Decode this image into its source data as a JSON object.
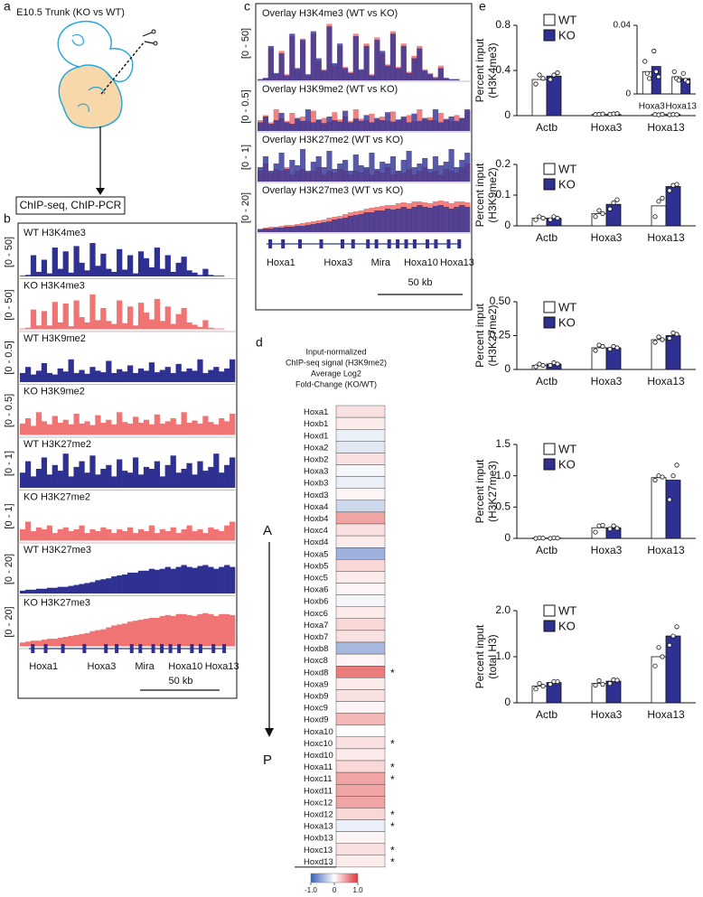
{
  "panel_labels": [
    "a",
    "b",
    "c",
    "d",
    "e"
  ],
  "panel_a": {
    "title": "E10.5 Trunk (KO vs WT)",
    "result": "ChIP-seq, ChIP-PCR"
  },
  "tracks": {
    "series": [
      {
        "name": "WT H3K4me3",
        "range_label": "[0 - 50]",
        "ylim": [
          0,
          50
        ],
        "color": "#2e3192",
        "values": [
          1,
          2,
          28,
          6,
          22,
          4,
          38,
          10,
          33,
          5,
          40,
          18,
          8,
          44,
          14,
          30,
          10,
          6,
          36,
          9,
          28,
          4,
          33,
          24,
          12,
          38,
          10,
          28,
          6,
          18,
          26,
          8,
          5,
          2,
          10,
          2,
          1,
          1,
          0,
          0
        ]
      },
      {
        "name": "KO H3K4me3",
        "range_label": "[0 - 50]",
        "ylim": [
          0,
          50
        ],
        "color": "#f07474",
        "values": [
          1,
          2,
          26,
          5,
          24,
          5,
          36,
          9,
          34,
          4,
          38,
          16,
          9,
          46,
          12,
          28,
          11,
          7,
          38,
          8,
          30,
          5,
          35,
          22,
          13,
          40,
          11,
          30,
          7,
          20,
          28,
          9,
          6,
          3,
          12,
          2,
          1,
          1,
          0,
          0
        ]
      },
      {
        "name": "WT H3K9me2",
        "range_label": "[0 - 0.5]",
        "ylim": [
          0,
          0.5
        ],
        "color": "#2e3192",
        "values": [
          0.12,
          0.2,
          0.1,
          0.15,
          0.25,
          0.12,
          0.1,
          0.18,
          0.14,
          0.3,
          0.12,
          0.16,
          0.11,
          0.2,
          0.15,
          0.13,
          0.28,
          0.12,
          0.17,
          0.14,
          0.22,
          0.12,
          0.18,
          0.15,
          0.26,
          0.13,
          0.16,
          0.2,
          0.12,
          0.24,
          0.14,
          0.18,
          0.15,
          0.3,
          0.12,
          0.16,
          0.2,
          0.14,
          0.18,
          0.3
        ]
      },
      {
        "name": "KO H3K9me2",
        "range_label": "[0 - 0.5]",
        "ylim": [
          0,
          0.5
        ],
        "color": "#f07474",
        "values": [
          0.15,
          0.22,
          0.12,
          0.3,
          0.18,
          0.14,
          0.25,
          0.16,
          0.2,
          0.14,
          0.28,
          0.15,
          0.18,
          0.13,
          0.26,
          0.16,
          0.2,
          0.14,
          0.3,
          0.17,
          0.15,
          0.24,
          0.16,
          0.2,
          0.14,
          0.27,
          0.15,
          0.18,
          0.22,
          0.14,
          0.3,
          0.16,
          0.19,
          0.15,
          0.25,
          0.17,
          0.14,
          0.22,
          0.18,
          0.28
        ]
      },
      {
        "name": "WT H3K27me2",
        "range_label": "[0 - 1]",
        "ylim": [
          0,
          1
        ],
        "color": "#2e3192",
        "values": [
          0.4,
          0.7,
          0.3,
          0.5,
          0.8,
          0.35,
          0.6,
          0.45,
          0.9,
          0.3,
          0.55,
          0.7,
          0.4,
          0.85,
          0.35,
          0.5,
          0.6,
          0.3,
          0.75,
          0.45,
          0.4,
          0.8,
          0.35,
          0.55,
          0.5,
          0.7,
          0.3,
          0.6,
          0.85,
          0.4,
          0.5,
          0.65,
          0.35,
          0.7,
          0.45,
          0.55,
          0.9,
          0.4,
          0.6,
          0.8
        ]
      },
      {
        "name": "KO H3K27me2",
        "range_label": "[0 - 1]",
        "ylim": [
          0,
          1
        ],
        "color": "#f07474",
        "values": [
          0.3,
          0.5,
          0.25,
          0.35,
          0.3,
          0.4,
          0.2,
          0.3,
          0.35,
          0.25,
          0.3,
          0.4,
          0.2,
          0.3,
          0.25,
          0.35,
          0.3,
          0.2,
          0.3,
          0.25,
          0.35,
          0.2,
          0.3,
          0.25,
          0.4,
          0.2,
          0.3,
          0.25,
          0.35,
          0.2,
          0.3,
          0.4,
          0.25,
          0.3,
          0.2,
          0.35,
          0.3,
          0.25,
          0.4,
          0.5
        ]
      },
      {
        "name": "WT H3K27me3",
        "range_label": "[0 - 20]",
        "ylim": [
          0,
          20
        ],
        "color": "#2e3192",
        "values": [
          1.5,
          2,
          2,
          2.5,
          2.5,
          3,
          3,
          3.5,
          3.5,
          4,
          4.5,
          5,
          5.5,
          6,
          7,
          7.5,
          8,
          9,
          9.5,
          10,
          11,
          11,
          12,
          12,
          13,
          12.5,
          13,
          14,
          13,
          14,
          15,
          14,
          13.5,
          14.5,
          15,
          14,
          13,
          14,
          15,
          14
        ]
      },
      {
        "name": "KO H3K27me3",
        "range_label": "[0 - 20]",
        "ylim": [
          0,
          20
        ],
        "color": "#f07474",
        "values": [
          2,
          2.5,
          3,
          3,
          3.5,
          4,
          4,
          4.5,
          5,
          5.5,
          6,
          6.5,
          7,
          8,
          8.5,
          9,
          10,
          11,
          11.5,
          12,
          13,
          13.5,
          14,
          14.5,
          15,
          15,
          16,
          16.5,
          16,
          17,
          17,
          16.5,
          16,
          17,
          17.5,
          17,
          16,
          17,
          17,
          16.5
        ]
      }
    ],
    "overlays": [
      {
        "name": "Overlay H3K4me3 (WT vs KO)",
        "range_label": "[0 - 50]",
        "ylim": [
          0,
          50
        ]
      },
      {
        "name": "Overlay H3K9me2 (WT vs KO)",
        "range_label": "[0 - 0.5]",
        "ylim": [
          0,
          0.5
        ]
      },
      {
        "name": "Overlay H3K27me2 (WT vs KO)",
        "range_label": "[0 - 1]",
        "ylim": [
          0,
          1
        ]
      },
      {
        "name": "Overlay H3K27me3 (WT vs KO)",
        "range_label": "[0 - 20]",
        "ylim": [
          0,
          20
        ]
      }
    ],
    "genes": [
      "Hoxa1",
      "Hoxa3",
      "Mira",
      "Hoxa10",
      "Hoxa13"
    ],
    "scale": "50 kb"
  },
  "heatmap": {
    "title": [
      "Input-normalized",
      "ChIP-seq signal (H3K9me2)",
      "Average Log2",
      "Fold-Change (KO/WT)"
    ],
    "genes": [
      "Hoxa1",
      "Hoxb1",
      "Hoxd1",
      "Hoxa2",
      "Hoxb2",
      "Hoxa3",
      "Hoxb3",
      "Hoxd3",
      "Hoxa4",
      "Hoxb4",
      "Hoxc4",
      "Hoxd4",
      "Hoxa5",
      "Hoxb5",
      "Hoxc5",
      "Hoxa6",
      "Hoxb6",
      "Hoxc6",
      "Hoxa7",
      "Hoxb7",
      "Hoxb8",
      "Hoxc8",
      "Hoxd8",
      "Hoxa9",
      "Hoxb9",
      "Hoxc9",
      "Hoxd9",
      "Hoxa10",
      "Hoxc10",
      "Hoxd10",
      "Hoxa11",
      "Hoxc11",
      "Hoxd11",
      "Hoxc12",
      "Hoxd12",
      "Hoxa13",
      "Hoxb13",
      "Hoxc13",
      "Hoxd13"
    ],
    "values": [
      0.15,
      0.1,
      -0.1,
      -0.15,
      0.15,
      -0.05,
      -0.1,
      0.05,
      -0.25,
      0.45,
      0.15,
      0.1,
      -0.5,
      0.2,
      0.1,
      0.05,
      -0.05,
      0.1,
      0.2,
      0.15,
      -0.45,
      0.05,
      0.65,
      0.1,
      0.15,
      0.05,
      0.35,
      0,
      0.15,
      0.1,
      0.2,
      0.45,
      0.45,
      0.45,
      0.2,
      -0.1,
      0.05,
      0.15,
      0.1
    ],
    "significance": [
      null,
      null,
      null,
      null,
      null,
      null,
      null,
      null,
      null,
      null,
      null,
      null,
      null,
      null,
      null,
      null,
      null,
      null,
      null,
      null,
      null,
      null,
      "*",
      null,
      null,
      null,
      null,
      null,
      "*",
      null,
      "*",
      "*",
      null,
      null,
      "*",
      "*",
      null,
      "*",
      "*"
    ],
    "anterior": "A",
    "posterior": "P",
    "clim": [
      -1,
      1
    ],
    "colorbar_ticks": [
      {
        "value": -1,
        "label": "-1.0"
      },
      0,
      {
        "value": 1,
        "label": "1.0"
      }
    ]
  },
  "chart_data": [
    {
      "type": "bar",
      "ylabel": [
        "Percent input",
        "(H3K4me3)"
      ],
      "categories": [
        "Actb",
        "Hoxa3",
        "Hoxa13"
      ],
      "series": [
        {
          "name": "WT",
          "color": "#ffffff",
          "values": [
            0.32,
            0.01,
            0.01
          ],
          "points": [
            [
              0.28,
              0.36,
              0.33
            ],
            [
              0.01,
              0.012,
              0.015
            ],
            [
              0.01,
              0.008,
              0.012
            ]
          ]
        },
        {
          "name": "KO",
          "color": "#2e3192",
          "values": [
            0.35,
            0.01,
            0.01
          ],
          "points": [
            [
              0.32,
              0.36,
              0.38
            ],
            [
              0.012,
              0.016,
              0.018
            ],
            [
              0.008,
              0.01,
              0.009
            ]
          ]
        }
      ],
      "ylim": [
        0,
        0.8
      ],
      "yticks": [
        0,
        0.4,
        0.8
      ],
      "inset": {
        "type": "bar",
        "categories": [
          "Hoxa3",
          "Hoxa13"
        ],
        "series": [
          {
            "color": "#ffffff",
            "values": [
              0.013,
              0.01
            ],
            "points": [
              [
                0.019,
                0.012,
                0.009
              ],
              [
                0.013,
                0.009,
                0.008
              ]
            ]
          },
          {
            "color": "#2e3192",
            "values": [
              0.016,
              0.009
            ],
            "points": [
              [
                0.025,
                0.013,
                0.01
              ],
              [
                0.012,
                0.008,
                0.007
              ]
            ]
          }
        ],
        "ylim": [
          0,
          0.04
        ],
        "yticks": [
          0,
          0.04
        ]
      }
    },
    {
      "type": "bar",
      "ylabel": [
        "Percent input",
        "(H3K9me2)"
      ],
      "categories": [
        "Actb",
        "Hoxa3",
        "Hoxa13"
      ],
      "series": [
        {
          "name": "WT",
          "color": "#ffffff",
          "values": [
            0.025,
            0.04,
            0.065
          ],
          "points": [
            [
              0.02,
              0.03,
              0.025
            ],
            [
              0.03,
              0.05,
              0.04
            ],
            [
              0.03,
              0.08,
              0.09
            ]
          ]
        },
        {
          "name": "KO",
          "color": "#2e3192",
          "values": [
            0.025,
            0.07,
            0.128
          ],
          "points": [
            [
              0.02,
              0.03,
              0.025
            ],
            [
              0.055,
              0.075,
              0.085
            ],
            [
              0.115,
              0.132,
              0.135
            ]
          ]
        }
      ],
      "ylim": [
        0,
        0.2
      ],
      "yticks": [
        0,
        0.1,
        0.2
      ]
    },
    {
      "type": "bar",
      "ylabel": [
        "Percent input",
        "(H3K27me2)"
      ],
      "categories": [
        "Actb",
        "Hoxa3",
        "Hoxa13"
      ],
      "series": [
        {
          "name": "WT",
          "color": "#ffffff",
          "values": [
            0.03,
            0.16,
            0.22
          ],
          "points": [
            [
              0.02,
              0.04,
              0.03
            ],
            [
              0.14,
              0.18,
              0.17
            ],
            [
              0.2,
              0.24,
              0.22
            ]
          ]
        },
        {
          "name": "KO",
          "color": "#2e3192",
          "values": [
            0.04,
            0.16,
            0.25
          ],
          "points": [
            [
              0.03,
              0.05,
              0.04
            ],
            [
              0.15,
              0.17,
              0.16
            ],
            [
              0.23,
              0.27,
              0.26
            ]
          ]
        }
      ],
      "ylim": [
        0,
        0.5
      ],
      "yticks": [
        0,
        0.25,
        {
          "value": 0.5,
          "label": "0.50"
        }
      ]
    },
    {
      "type": "bar",
      "ylabel": [
        "Percent input",
        "(H3K27me3)"
      ],
      "categories": [
        "Actb",
        "Hoxa3",
        "Hoxa13"
      ],
      "series": [
        {
          "name": "WT",
          "color": "#ffffff",
          "values": [
            0.005,
            0.17,
            0.97
          ],
          "points": [
            [
              0,
              0.01,
              0.005
            ],
            [
              0.1,
              0.2,
              0.21
            ],
            [
              0.93,
              1.0,
              0.98
            ]
          ]
        },
        {
          "name": "KO",
          "color": "#2e3192",
          "values": [
            0.005,
            0.17,
            0.93
          ],
          "points": [
            [
              0,
              0.01,
              0.005
            ],
            [
              0.15,
              0.2,
              0.16
            ],
            [
              0.62,
              1.0,
              1.17
            ]
          ]
        }
      ],
      "ylim": [
        0,
        1.5
      ],
      "yticks": [
        0,
        0.5,
        {
          "value": 1,
          "label": "1.0"
        },
        1.5
      ]
    },
    {
      "type": "bar",
      "ylabel": [
        "Percent input",
        "(total H3)"
      ],
      "categories": [
        "Actb",
        "Hoxa3",
        "Hoxa13"
      ],
      "series": [
        {
          "name": "WT",
          "color": "#ffffff",
          "values": [
            0.36,
            0.42,
            1.0
          ],
          "points": [
            [
              0.3,
              0.42,
              0.36
            ],
            [
              0.38,
              0.48,
              0.4
            ],
            [
              0.8,
              1.2,
              1.0
            ]
          ]
        },
        {
          "name": "KO",
          "color": "#2e3192",
          "values": [
            0.44,
            0.47,
            1.45
          ],
          "points": [
            [
              0.4,
              0.46,
              0.46
            ],
            [
              0.42,
              0.5,
              0.49
            ],
            [
              1.25,
              1.45,
              1.65
            ]
          ]
        }
      ],
      "ylim": [
        0,
        2
      ],
      "yticks": [
        0,
        {
          "value": 1,
          "label": "1.0"
        },
        {
          "value": 2,
          "label": "2.0"
        }
      ]
    }
  ]
}
